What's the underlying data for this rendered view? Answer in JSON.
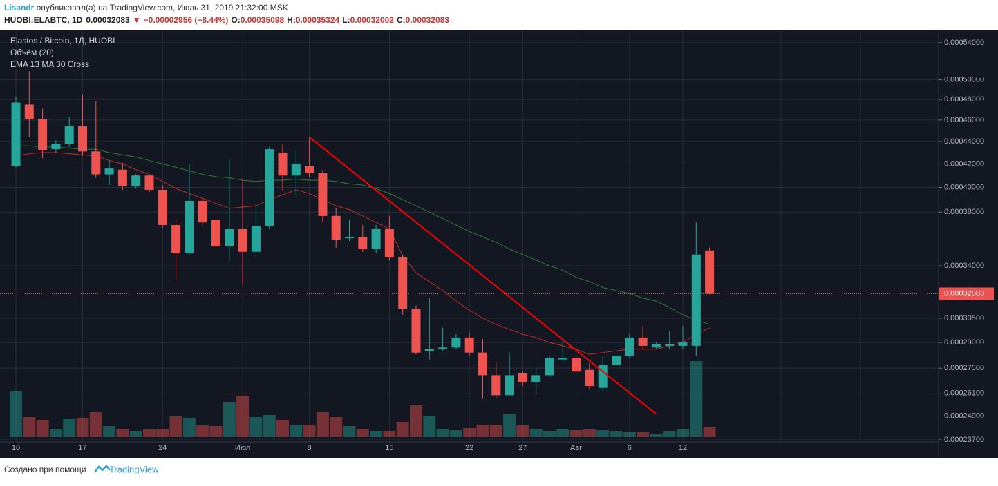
{
  "header": {
    "author": "Lisandr",
    "published": " опубликовал(а) на TradingView.com, Июль 31, 2019 21:32:00 MSK",
    "symbol": "HUOBI:ELABTC, 1D",
    "arrow": "▼",
    "change": "−0.00002956 (−8.44%)",
    "o_label": "O:",
    "h_label": "H:",
    "l_label": "L:",
    "c_label": "C:"
  },
  "chart_data": {
    "type": "candlestick",
    "title": "Elastos / Bitcoin, 1Д, HUOBI",
    "indicators": [
      "Объём (20)",
      "EMA 13 MA 30 Cross"
    ],
    "categories": [
      "10",
      null,
      null,
      null,
      null,
      "17",
      null,
      null,
      null,
      null,
      null,
      "24",
      null,
      null,
      null,
      null,
      null,
      "Июл",
      null,
      null,
      null,
      null,
      "8",
      null,
      null,
      null,
      null,
      null,
      "15",
      null,
      null,
      null,
      null,
      null,
      "22",
      null,
      null,
      null,
      "27",
      null,
      null,
      null,
      "Авг",
      null,
      null,
      null,
      "6",
      null,
      null,
      null,
      "12",
      null,
      null
    ],
    "open": [
      0.000418,
      0.000475,
      0.000461,
      0.000433,
      0.000438,
      0.000454,
      0.000431,
      0.000411,
      0.000415,
      0.000401,
      0.00041,
      0.000398,
      0.00037,
      0.000349,
      0.000389,
      0.000374,
      0.000354,
      0.000367,
      0.00035,
      0.000369,
      0.00043,
      0.00041,
      0.000418,
      0.000412,
      0.000377,
      0.00036,
      0.000361,
      0.000352,
      0.000367,
      0.000346,
      0.000311,
      0.000285,
      0.000286,
      0.000287,
      0.000293,
      0.000284,
      0.000271,
      0.00026,
      0.000272,
      0.000267,
      0.000271,
      0.00028,
      0.000281,
      0.000274,
      0.000264,
      0.000277,
      0.000282,
      0.000293,
      0.000287,
      0.000288,
      0.000288,
      0.000288,
      0.00035098
    ],
    "high": [
      0.000483,
      0.000509,
      0.000471,
      0.000441,
      0.000463,
      0.000485,
      0.000478,
      0.000423,
      0.000421,
      0.000411,
      0.000411,
      0.000402,
      0.000375,
      0.00042,
      0.000391,
      0.000376,
      0.000424,
      0.000407,
      0.000387,
      0.000435,
      0.000438,
      0.000432,
      0.000444,
      0.000415,
      0.000383,
      0.000374,
      0.00037,
      0.00037,
      0.000377,
      0.000348,
      0.000313,
      0.000318,
      0.000299,
      0.000295,
      0.000296,
      0.000292,
      0.000278,
      0.000284,
      0.000273,
      0.000275,
      0.000282,
      0.000291,
      0.000282,
      0.000278,
      0.000282,
      0.00029,
      0.000295,
      0.0003,
      0.00029,
      0.000297,
      0.0003,
      0.000372,
      0.00035324
    ],
    "low": [
      0.000417,
      0.000444,
      0.000425,
      0.00043,
      0.000435,
      0.000427,
      0.000408,
      0.000402,
      0.000398,
      0.000399,
      0.000396,
      0.000368,
      0.00033,
      0.000348,
      0.000369,
      0.000352,
      0.000343,
      0.000327,
      0.000345,
      0.000367,
      0.000397,
      0.000394,
      0.000409,
      0.000372,
      0.000353,
      0.000358,
      0.00035,
      0.000349,
      0.000344,
      0.000307,
      0.000283,
      0.00028,
      0.000285,
      0.000286,
      0.000282,
      0.000258,
      0.000258,
      0.00026,
      0.000265,
      0.00026,
      0.00027,
      0.000278,
      0.000273,
      0.000263,
      0.000262,
      0.000277,
      0.000281,
      0.000286,
      0.000286,
      0.000286,
      0.000286,
      0.000282,
      0.00032002
    ],
    "close": [
      0.000477,
      0.000461,
      0.000432,
      0.000438,
      0.000454,
      0.000431,
      0.000411,
      0.000416,
      0.000401,
      0.00041,
      0.000398,
      0.00037,
      0.000349,
      0.000389,
      0.000372,
      0.000354,
      0.000367,
      0.00035,
      0.000369,
      0.000433,
      0.00041,
      0.00042,
      0.000412,
      0.000377,
      0.000359,
      0.000361,
      0.000352,
      0.000367,
      0.000346,
      0.000311,
      0.000284,
      0.000286,
      0.000287,
      0.000293,
      0.000284,
      0.000271,
      0.00026,
      0.000271,
      0.000267,
      0.000271,
      0.000281,
      0.000281,
      0.000273,
      0.000265,
      0.000277,
      0.000282,
      0.000293,
      0.000288,
      0.000289,
      0.000289,
      0.00029,
      0.000348,
      0.00032083
    ],
    "volume": [
      67,
      29,
      25,
      11,
      26,
      28,
      36,
      16,
      12,
      8,
      11,
      12,
      30,
      28,
      17,
      16,
      50,
      60,
      29,
      32,
      25,
      17,
      18,
      36,
      29,
      16,
      12,
      9,
      9,
      22,
      46,
      31,
      12,
      10,
      13,
      18,
      18,
      33,
      17,
      12,
      9,
      12,
      10,
      11,
      10,
      8,
      7,
      7,
      4,
      9,
      11,
      110,
      15
    ],
    "up_color": "#26a69a",
    "down_color": "#ef5350",
    "lines": [
      {
        "color": "#c62828",
        "values": [
          0.000427,
          0.000429,
          0.00043,
          0.00043,
          0.000429,
          0.000428,
          0.000427,
          0.000423,
          0.00042,
          0.000415,
          0.000411,
          0.000405,
          0.000399,
          0.000395,
          0.000391,
          0.000387,
          0.000383,
          0.000384,
          0.000385,
          0.00039,
          0.000394,
          0.000398,
          0.000395,
          0.00039,
          0.000385,
          0.000382,
          0.000377,
          0.000372,
          0.000367,
          0.000347,
          0.000335,
          0.000329,
          0.000323,
          0.000316,
          0.00031,
          0.000305,
          0.000301,
          0.000298,
          0.000295,
          0.000293,
          0.00029,
          0.000288,
          0.000286,
          0.000283,
          0.000284,
          0.000285,
          0.000286,
          0.000286,
          0.000286,
          0.000288,
          0.00029,
          0.000295,
          0.000299
        ]
      },
      {
        "color": "#2e7d32",
        "values": [
          0.000436,
          0.000436,
          0.000435,
          0.000435,
          0.000434,
          0.000433,
          0.000433,
          0.00043,
          0.000428,
          0.000426,
          0.000423,
          0.00042,
          0.000417,
          0.000414,
          0.000411,
          0.000409,
          0.000408,
          0.000406,
          0.000405,
          0.000406,
          0.000406,
          0.000407,
          0.000406,
          0.000406,
          0.000405,
          0.000403,
          0.000402,
          0.000399,
          0.000395,
          0.00039,
          0.000385,
          0.00038,
          0.000375,
          0.00037,
          0.000365,
          0.000361,
          0.000357,
          0.000352,
          0.000348,
          0.000344,
          0.00034,
          0.000337,
          0.000332,
          0.000329,
          0.000325,
          0.000323,
          0.000321,
          0.000318,
          0.000316,
          0.000312,
          0.000307,
          0.000304,
          0.000301
        ]
      }
    ],
    "trendline": {
      "color": "#ff0000",
      "x": [
        22,
        48
      ],
      "values": [
        0.000444,
        0.00025
      ]
    },
    "ylim": [
      0.000236,
      0.000554
    ],
    "log_scale": true,
    "grid": true,
    "yticks": [
      {
        "value": 0.00054,
        "label": "0.00054000"
      },
      {
        "value": 0.0005,
        "label": "0.00050000"
      },
      {
        "value": 0.00048,
        "label": "0.00048000"
      },
      {
        "value": 0.00046,
        "label": "0.00046000"
      },
      {
        "value": 0.00044,
        "label": "0.00044000"
      },
      {
        "value": 0.00042,
        "label": "0.00042000"
      },
      {
        "value": 0.0004,
        "label": "0.00040000"
      },
      {
        "value": 0.00038,
        "label": "0.00038000"
      },
      {
        "value": 0.00034,
        "label": "0.00034000"
      },
      {
        "value": 0.000305,
        "label": "0.00030500"
      },
      {
        "value": 0.00029,
        "label": "0.00029000"
      },
      {
        "value": 0.000275,
        "label": "0.00027500"
      },
      {
        "value": 0.000261,
        "label": "0.00026100"
      },
      {
        "value": 0.000249,
        "label": "0.00024900"
      },
      {
        "value": 0.000237,
        "label": "0.00023700"
      }
    ]
  },
  "footer": {
    "text": "Создано при помощи",
    "logo": "TradingView"
  }
}
